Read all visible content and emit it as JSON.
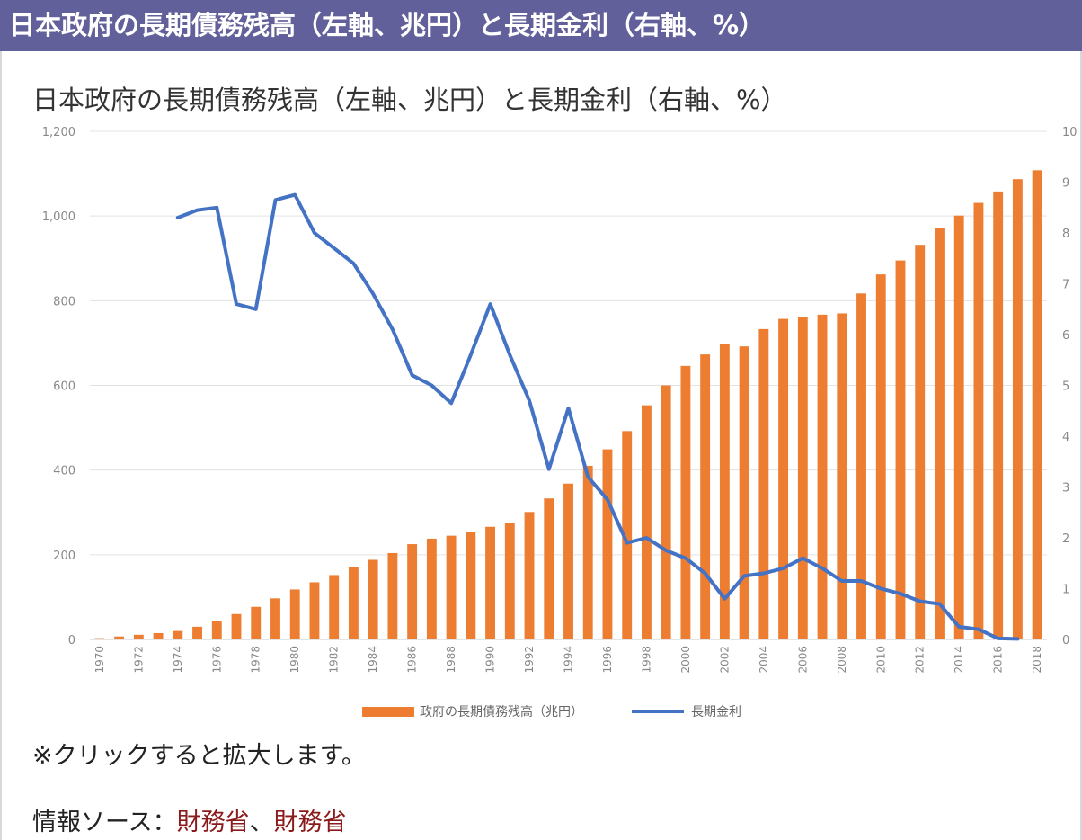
{
  "header": {
    "title": "日本政府の長期債務残高（左軸、兆円）と長期金利（右軸、%）"
  },
  "chart_data": {
    "type": "bar",
    "title": "日本政府の長期債務残高（左軸、兆円）と長期金利（右軸、%）",
    "x": [
      1970,
      1971,
      1972,
      1973,
      1974,
      1975,
      1976,
      1977,
      1978,
      1979,
      1980,
      1981,
      1982,
      1983,
      1984,
      1985,
      1986,
      1987,
      1988,
      1989,
      1990,
      1991,
      1992,
      1993,
      1994,
      1995,
      1996,
      1997,
      1998,
      1999,
      2000,
      2001,
      2002,
      2003,
      2004,
      2005,
      2006,
      2007,
      2008,
      2009,
      2010,
      2011,
      2012,
      2013,
      2014,
      2015,
      2016,
      2017,
      2018
    ],
    "x_tick_labels": [
      "1970",
      "1972",
      "1974",
      "1976",
      "1978",
      "1980",
      "1982",
      "1984",
      "1986",
      "1988",
      "1990",
      "1992",
      "1994",
      "1996",
      "1998",
      "2000",
      "2002",
      "2004",
      "2006",
      "2008",
      "2010",
      "2012",
      "2014",
      "2016",
      "2018"
    ],
    "y_left": {
      "ylim": [
        0,
        1200
      ],
      "ticks": [
        "0",
        "200",
        "400",
        "600",
        "800",
        "1,000",
        "1,200"
      ]
    },
    "y_right": {
      "ylim": [
        0,
        10
      ],
      "ticks": [
        "0",
        "1",
        "2",
        "3",
        "4",
        "5",
        "6",
        "7",
        "8",
        "9",
        "10"
      ]
    },
    "grid": true,
    "legend_position": "bottom",
    "series": [
      {
        "name": "政府の長期債務残高（兆円）",
        "type": "bar",
        "axis": "left",
        "color": "#ed7d31",
        "values": [
          3,
          7,
          11,
          15,
          20,
          30,
          44,
          60,
          77,
          97,
          118,
          135,
          152,
          172,
          188,
          204,
          225,
          238,
          245,
          253,
          266,
          276,
          301,
          333,
          368,
          410,
          449,
          492,
          553,
          600,
          646,
          673,
          697,
          692,
          733,
          757,
          761,
          767,
          770,
          817,
          862,
          895,
          932,
          972,
          1001,
          1031,
          1058,
          1087,
          1108
        ]
      },
      {
        "name": "長期金利",
        "type": "line",
        "axis": "right",
        "color": "#4472c4",
        "values": [
          null,
          null,
          null,
          null,
          8.3,
          8.45,
          8.5,
          6.6,
          6.5,
          8.65,
          8.75,
          8.0,
          7.7,
          7.4,
          6.8,
          6.1,
          5.2,
          5.0,
          4.65,
          5.6,
          6.6,
          5.6,
          4.7,
          3.35,
          4.55,
          3.2,
          2.75,
          1.9,
          2.0,
          1.75,
          1.6,
          1.3,
          0.8,
          1.25,
          1.3,
          1.4,
          1.6,
          1.4,
          1.15,
          1.15,
          1.0,
          0.9,
          0.75,
          0.7,
          0.25,
          0.2,
          0.02,
          0.01,
          null
        ]
      }
    ]
  },
  "legend": {
    "bar_label": "政府の長期債務残高（兆円）",
    "line_label": "長期金利"
  },
  "note": "※クリックすると拡大します。",
  "source": {
    "prefix": "情報ソース：",
    "link1": "財務省",
    "separator": "、",
    "link2": "財務省"
  }
}
